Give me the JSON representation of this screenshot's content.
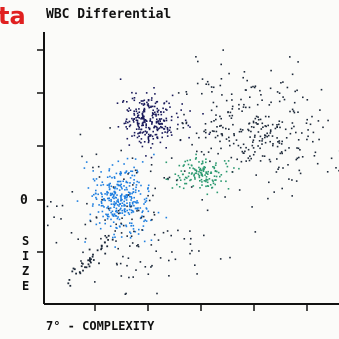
{
  "corner_label": "ta",
  "chart_data": {
    "type": "scatter",
    "title": "WBC Differential",
    "xlabel": "7° - COMPLEXITY",
    "ylabel": "SIZE",
    "ytick_label": "0",
    "x_range": [
      0,
      100
    ],
    "y_range": [
      0,
      100
    ],
    "grid": false,
    "colors": {
      "dark_cluster": "#1a1a5a",
      "blue_cluster": "#1f7fe0",
      "green_cluster": "#2c9a70",
      "gray_cluster": "#1e2a3a",
      "axis": "#111111",
      "red_text": "#e02020"
    },
    "clusters": [
      {
        "x": 35,
        "y": 68,
        "sx": 5,
        "sy": 5,
        "n": 260
      },
      {
        "x": 25,
        "y": 38,
        "sx": 5,
        "sy": 6.5,
        "n": 330
      },
      {
        "x": 53,
        "y": 48,
        "sx": 5,
        "sy": 3,
        "n": 140
      },
      {
        "x": 72,
        "y": 65,
        "sx": 13,
        "sy": 10,
        "n": 300
      },
      {
        "x": 30,
        "y": 30,
        "sx": 18,
        "sy": 16,
        "n": 140
      }
    ],
    "tail": {
      "x_from": 7,
      "x_to": 22,
      "y_from": 8,
      "y_to": 24,
      "n": 40
    }
  }
}
